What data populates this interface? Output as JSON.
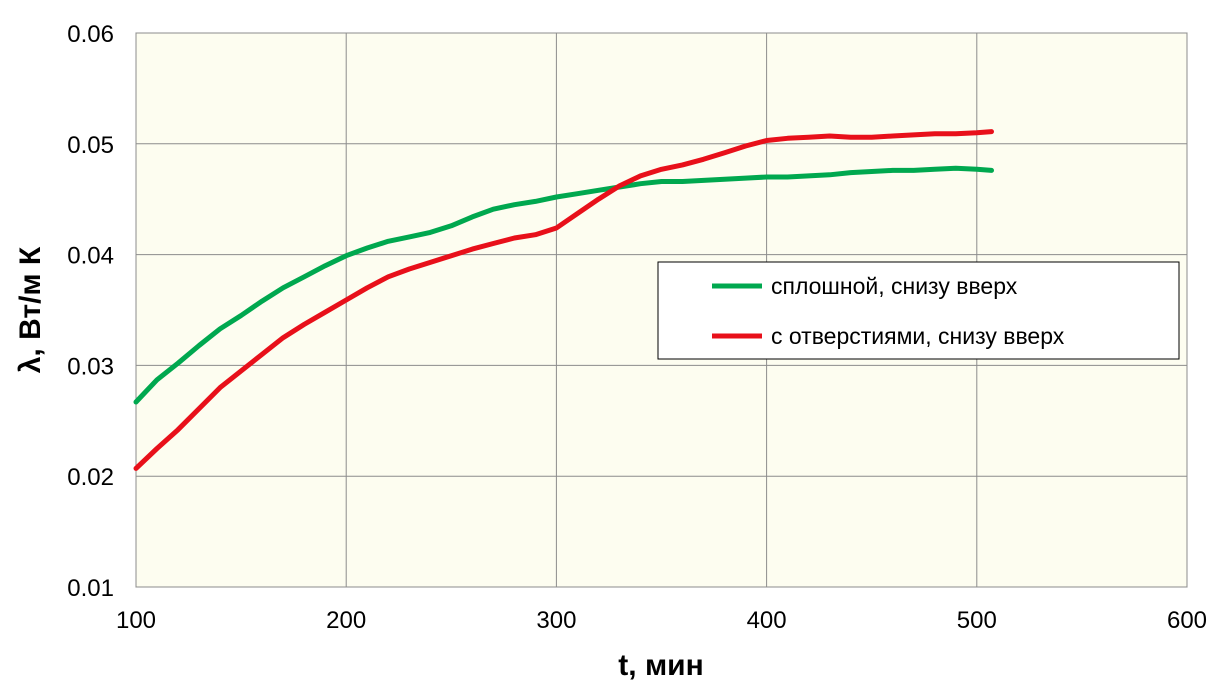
{
  "chart_data": {
    "type": "line",
    "xlabel": "t, мин",
    "ylabel": "λ, Вт/м К",
    "xlim": [
      100,
      600
    ],
    "ylim": [
      0.01,
      0.06
    ],
    "xticks": [
      "100",
      "200",
      "300",
      "400",
      "500",
      "600"
    ],
    "yticks": [
      "0.01",
      "0.02",
      "0.03",
      "0.04",
      "0.05",
      "0.06"
    ],
    "grid": true,
    "legend_position": "right-middle",
    "plot_background": "#fdfdf0",
    "series": [
      {
        "name": "сплошной, снизу вверх",
        "color": "#00a84f",
        "x": [
          100,
          110,
          120,
          130,
          140,
          150,
          160,
          170,
          180,
          190,
          200,
          210,
          220,
          230,
          240,
          250,
          260,
          270,
          280,
          290,
          300,
          310,
          320,
          330,
          340,
          350,
          360,
          370,
          380,
          390,
          400,
          410,
          420,
          430,
          440,
          450,
          460,
          470,
          480,
          490,
          500,
          507
        ],
        "y": [
          0.0267,
          0.0287,
          0.0302,
          0.0318,
          0.0333,
          0.0345,
          0.0358,
          0.037,
          0.038,
          0.039,
          0.0399,
          0.0406,
          0.0412,
          0.0416,
          0.042,
          0.0426,
          0.0434,
          0.0441,
          0.0445,
          0.0448,
          0.0452,
          0.0455,
          0.0458,
          0.0461,
          0.0464,
          0.0466,
          0.0466,
          0.0467,
          0.0468,
          0.0469,
          0.047,
          0.047,
          0.0471,
          0.0472,
          0.0474,
          0.0475,
          0.0476,
          0.0476,
          0.0477,
          0.0478,
          0.0477,
          0.0476
        ]
      },
      {
        "name": "с отверстиями, снизу вверх",
        "color": "#e8101a",
        "x": [
          100,
          110,
          120,
          130,
          140,
          150,
          160,
          170,
          180,
          190,
          200,
          210,
          220,
          230,
          240,
          250,
          260,
          270,
          280,
          290,
          300,
          310,
          320,
          330,
          340,
          350,
          360,
          370,
          380,
          390,
          400,
          410,
          420,
          430,
          440,
          450,
          460,
          470,
          480,
          490,
          500,
          507
        ],
        "y": [
          0.0207,
          0.0225,
          0.0242,
          0.0261,
          0.028,
          0.0295,
          0.031,
          0.0325,
          0.0337,
          0.0348,
          0.0359,
          0.037,
          0.038,
          0.0387,
          0.0393,
          0.0399,
          0.0405,
          0.041,
          0.0415,
          0.0418,
          0.0424,
          0.0437,
          0.045,
          0.0462,
          0.0471,
          0.0477,
          0.0481,
          0.0486,
          0.0492,
          0.0498,
          0.0503,
          0.0505,
          0.0506,
          0.0507,
          0.0506,
          0.0506,
          0.0507,
          0.0508,
          0.0509,
          0.0509,
          0.051,
          0.0511
        ]
      }
    ]
  }
}
